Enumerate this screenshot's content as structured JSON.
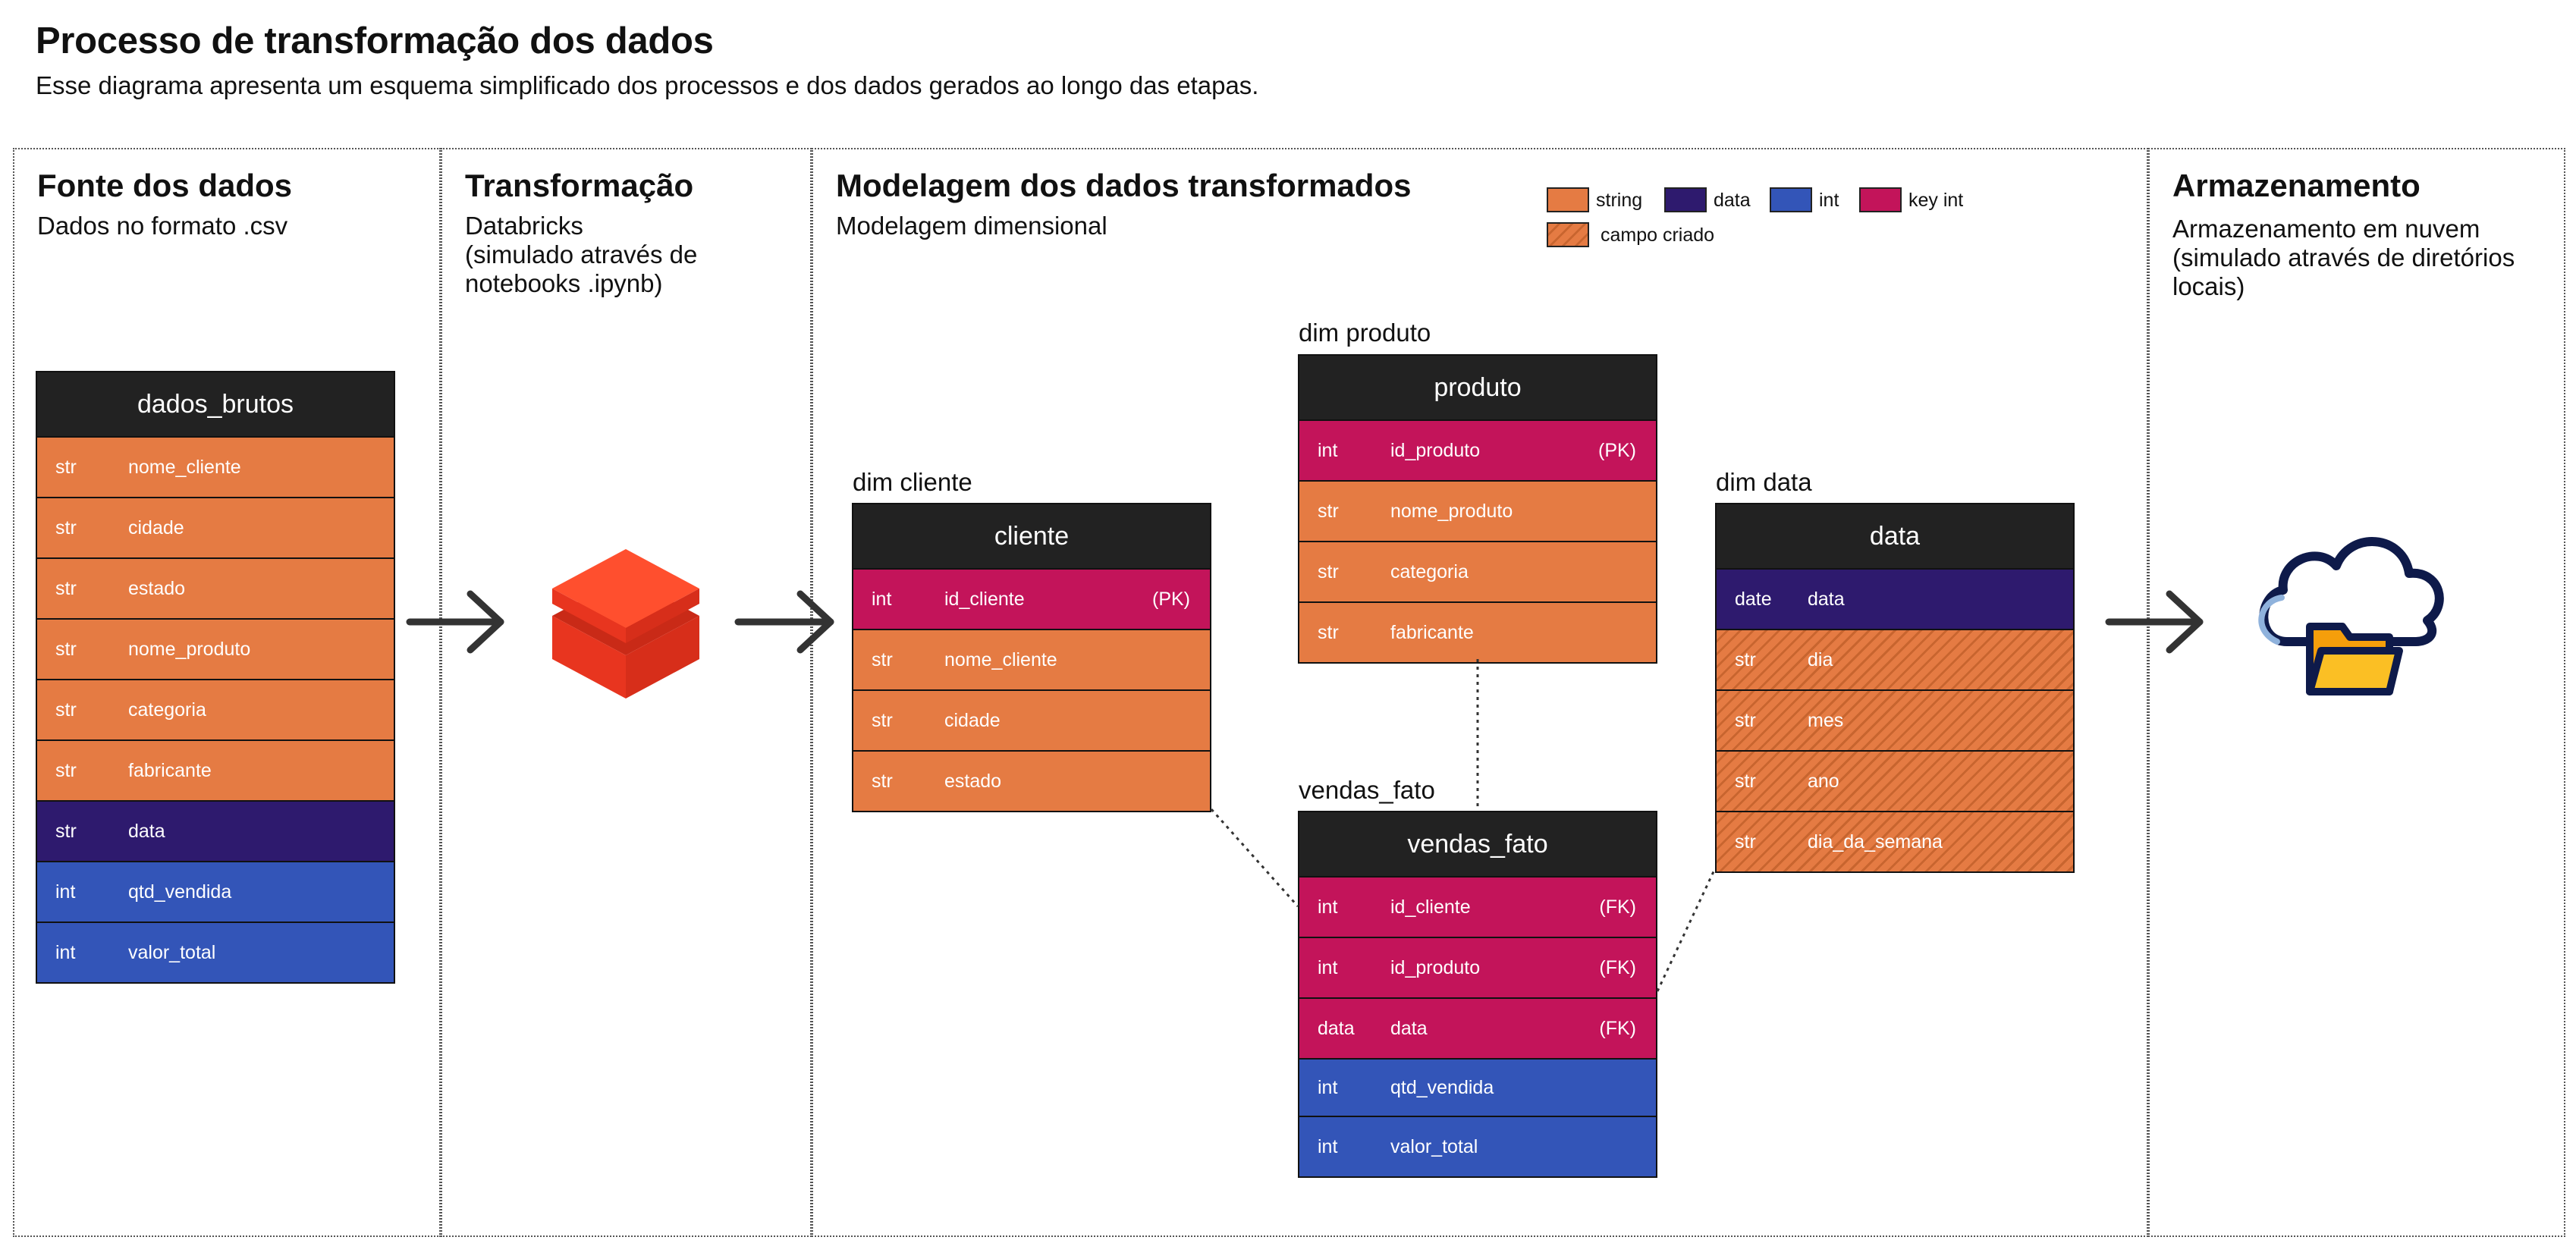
{
  "header": {
    "title": "Processo de transformação dos dados",
    "subtitle": "Esse diagrama  apresenta um esquema simplificado dos processos e dos dados gerados ao longo das etapas."
  },
  "sections": {
    "fonte": {
      "title": "Fonte dos dados",
      "desc": "Dados no formato .csv"
    },
    "transformacao": {
      "title": "Transformação",
      "desc": "Databricks\n(simulado através de\nnotebooks .ipynb)"
    },
    "modelagem": {
      "title": "Modelagem dos dados transformados",
      "desc": "Modelagem dimensional"
    },
    "armazenamento": {
      "title": "Armazenamento",
      "desc": "Armazenamento em nuvem\n(simulado através de diretórios\nlocais)"
    }
  },
  "legend": {
    "string": "string",
    "data": "data",
    "int": "int",
    "key_int": "key int",
    "campo_criado": "campo criado"
  },
  "colors": {
    "string": "#E57B43",
    "data": "#2E1A6E",
    "int": "#3355B8",
    "key": "#C3145A",
    "header": "#222222",
    "databricks": "#FF3621"
  },
  "tables": {
    "dados_brutos": {
      "name": "dados_brutos",
      "rows": [
        {
          "type": "str",
          "name": "nome_cliente",
          "key": ""
        },
        {
          "type": "str",
          "name": "cidade",
          "key": ""
        },
        {
          "type": "str",
          "name": "estado",
          "key": ""
        },
        {
          "type": "str",
          "name": "nome_produto",
          "key": ""
        },
        {
          "type": "str",
          "name": "categoria",
          "key": ""
        },
        {
          "type": "str",
          "name": "fabricante",
          "key": ""
        },
        {
          "type": "str",
          "name": "data",
          "key": ""
        },
        {
          "type": "int",
          "name": "qtd_vendida",
          "key": ""
        },
        {
          "type": "int",
          "name": "valor_total",
          "key": ""
        }
      ]
    },
    "cliente": {
      "label": "dim cliente",
      "name": "cliente",
      "rows": [
        {
          "type": "int",
          "name": "id_cliente",
          "key": "(PK)"
        },
        {
          "type": "str",
          "name": "nome_cliente",
          "key": ""
        },
        {
          "type": "str",
          "name": "cidade",
          "key": ""
        },
        {
          "type": "str",
          "name": "estado",
          "key": ""
        }
      ]
    },
    "produto": {
      "label": "dim produto",
      "name": "produto",
      "rows": [
        {
          "type": "int",
          "name": "id_produto",
          "key": "(PK)"
        },
        {
          "type": "str",
          "name": "nome_produto",
          "key": ""
        },
        {
          "type": "str",
          "name": "categoria",
          "key": ""
        },
        {
          "type": "str",
          "name": "fabricante",
          "key": ""
        }
      ]
    },
    "vendas_fato": {
      "label": "vendas_fato",
      "name": "vendas_fato",
      "rows": [
        {
          "type": "int",
          "name": "id_cliente",
          "key": "(FK)"
        },
        {
          "type": "int",
          "name": "id_produto",
          "key": "(FK)"
        },
        {
          "type": "data",
          "name": "data",
          "key": "(FK)"
        },
        {
          "type": "int",
          "name": "qtd_vendida",
          "key": ""
        },
        {
          "type": "int",
          "name": "valor_total",
          "key": ""
        }
      ]
    },
    "data": {
      "label": "dim data",
      "name": "data",
      "rows": [
        {
          "type": "date",
          "name": "data",
          "key": ""
        },
        {
          "type": "str",
          "name": "dia",
          "key": ""
        },
        {
          "type": "str",
          "name": "mes",
          "key": ""
        },
        {
          "type": "str",
          "name": "ano",
          "key": ""
        },
        {
          "type": "str",
          "name": "dia_da_semana",
          "key": ""
        }
      ]
    }
  },
  "icons": {
    "transform": "databricks-logo-icon",
    "storage": "cloud-folder-icon",
    "flow": "arrow-right-icon"
  }
}
